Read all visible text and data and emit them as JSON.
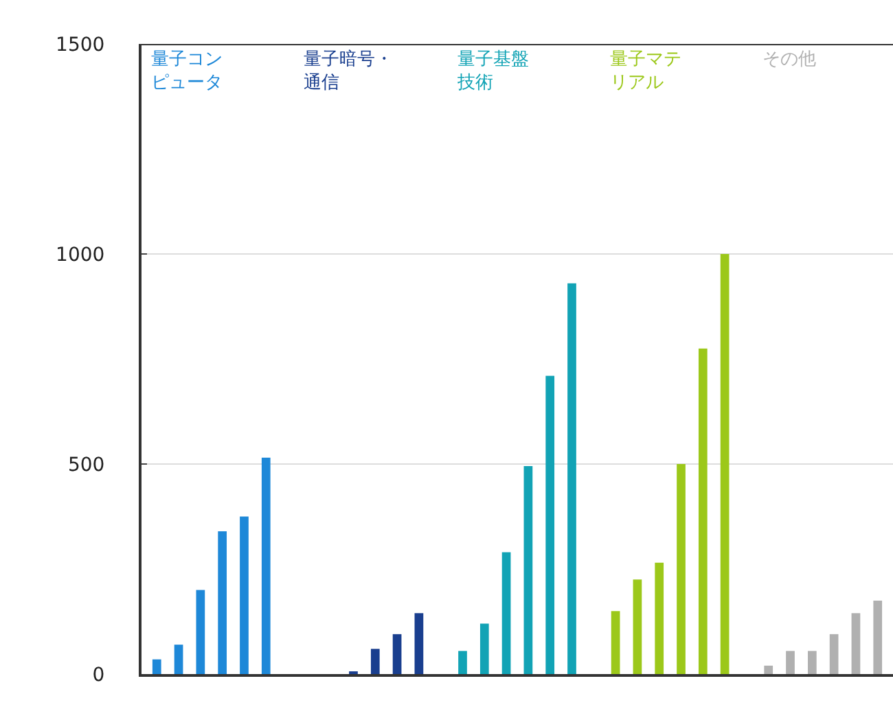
{
  "chart_data": {
    "type": "bar",
    "categories": [
      null,
      null,
      null,
      null,
      null,
      null,
      null,
      null,
      null,
      null,
      null,
      null,
      null,
      null,
      null,
      null,
      null,
      null,
      null,
      null,
      null,
      null,
      null,
      null,
      null,
      null,
      null,
      null,
      null,
      null,
      null,
      null,
      null,
      null
    ],
    "series": [
      {
        "name": "量子コンピュータ",
        "color": "#1e88d8",
        "values": [
          35,
          70,
          200,
          340,
          375,
          515,
          null,
          null,
          null,
          null,
          null,
          null,
          null,
          null,
          null,
          null,
          null,
          null,
          null,
          null,
          null,
          null,
          null,
          null,
          null,
          null,
          null,
          null,
          null,
          null,
          null,
          null,
          null,
          null
        ]
      },
      {
        "name": "量子暗号・通信",
        "color": "#1a3f8f",
        "values": [
          null,
          null,
          null,
          null,
          null,
          null,
          null,
          0,
          0,
          5,
          60,
          95,
          145,
          null,
          null,
          null,
          null,
          null,
          null,
          null,
          null,
          null,
          null,
          null,
          null,
          null,
          null,
          null,
          null,
          null,
          null,
          null,
          null,
          null
        ]
      },
      {
        "name": "量子基盤技術",
        "color": "#12a3b5",
        "values": [
          null,
          null,
          null,
          null,
          null,
          null,
          null,
          null,
          null,
          null,
          null,
          null,
          null,
          null,
          55,
          120,
          290,
          495,
          710,
          930,
          null,
          null,
          null,
          null,
          null,
          null,
          null,
          null,
          null,
          null,
          null,
          null,
          null,
          null
        ]
      },
      {
        "name": "量子マテリアル",
        "color": "#9cc81a",
        "values": [
          null,
          null,
          null,
          null,
          null,
          null,
          null,
          null,
          null,
          null,
          null,
          null,
          null,
          null,
          null,
          null,
          null,
          null,
          null,
          null,
          null,
          150,
          225,
          265,
          500,
          775,
          1000,
          null,
          null,
          null,
          null,
          null,
          null,
          null
        ]
      },
      {
        "name": "その他",
        "color": "#b0b0b0",
        "values": [
          null,
          null,
          null,
          null,
          null,
          null,
          null,
          null,
          null,
          null,
          null,
          null,
          null,
          null,
          null,
          null,
          null,
          null,
          null,
          null,
          null,
          null,
          null,
          null,
          null,
          null,
          null,
          null,
          20,
          55,
          55,
          95,
          145,
          175
        ]
      }
    ],
    "ylim": [
      0,
      1500
    ],
    "yticks": [
      0,
      500,
      1000,
      1500
    ],
    "grid": "y",
    "legend": false
  }
}
